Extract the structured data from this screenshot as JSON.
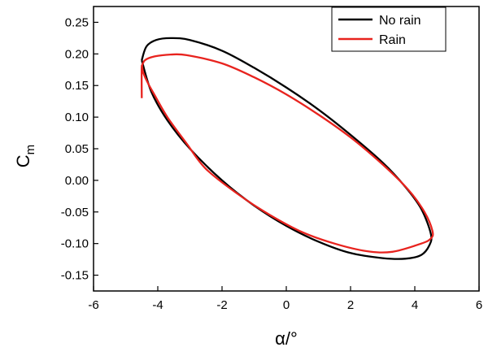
{
  "chart_data": {
    "type": "line",
    "title": "",
    "xlabel": "α/°",
    "ylabel": "C",
    "ylabel_subscript": "m",
    "xlim": [
      -6,
      6
    ],
    "ylim": [
      -0.175,
      0.275
    ],
    "x_ticks": [
      -6,
      -4,
      -2,
      0,
      2,
      4,
      6
    ],
    "x_tick_labels": [
      "-6",
      "-4",
      "-2",
      "0",
      "2",
      "4",
      "6"
    ],
    "y_ticks": [
      -0.15,
      -0.1,
      -0.05,
      0.0,
      0.05,
      0.1,
      0.15,
      0.2,
      0.25
    ],
    "y_tick_labels": [
      "-0.15",
      "-0.10",
      "-0.05",
      "0.00",
      "0.05",
      "0.10",
      "0.15",
      "0.20",
      "0.25"
    ],
    "grid": false,
    "legend_position": "top-right",
    "series": [
      {
        "name": "No rain",
        "color": "#000000",
        "x": [
          -4.5,
          -4.35,
          -4.05,
          -3.6,
          -3.0,
          -2.0,
          -1.0,
          0.0,
          1.0,
          2.0,
          3.0,
          3.7,
          4.2,
          4.5,
          4.45,
          4.2,
          3.7,
          3.0,
          2.0,
          1.0,
          0.0,
          -1.0,
          -2.0,
          -3.0,
          -3.7,
          -4.2,
          -4.5
        ],
        "y": [
          0.19,
          0.212,
          0.222,
          0.225,
          0.222,
          0.205,
          0.178,
          0.147,
          0.112,
          0.072,
          0.028,
          -0.01,
          -0.045,
          -0.085,
          -0.103,
          -0.118,
          -0.124,
          -0.123,
          -0.115,
          -0.097,
          -0.072,
          -0.04,
          0.0,
          0.05,
          0.095,
          0.14,
          0.19
        ]
      },
      {
        "name": "Rain",
        "color": "#e8231e",
        "x": [
          -4.5,
          -4.4,
          -4.1,
          -3.6,
          -3.1,
          -2.0,
          -1.0,
          0.0,
          1.0,
          2.0,
          3.0,
          3.8,
          4.3,
          4.55,
          4.5,
          4.2,
          3.3,
          2.5,
          1.5,
          0.5,
          -0.5,
          -1.5,
          -2.5,
          -3.1,
          -3.7,
          -4.1,
          -4.3,
          -4.45,
          -4.5,
          -4.5
        ],
        "y": [
          0.18,
          0.19,
          0.196,
          0.199,
          0.198,
          0.185,
          0.163,
          0.136,
          0.104,
          0.068,
          0.025,
          -0.015,
          -0.05,
          -0.08,
          -0.092,
          -0.1,
          -0.113,
          -0.112,
          -0.1,
          -0.082,
          -0.055,
          -0.022,
          0.018,
          0.058,
          0.1,
          0.135,
          0.153,
          0.17,
          0.18,
          0.13
        ]
      }
    ]
  }
}
